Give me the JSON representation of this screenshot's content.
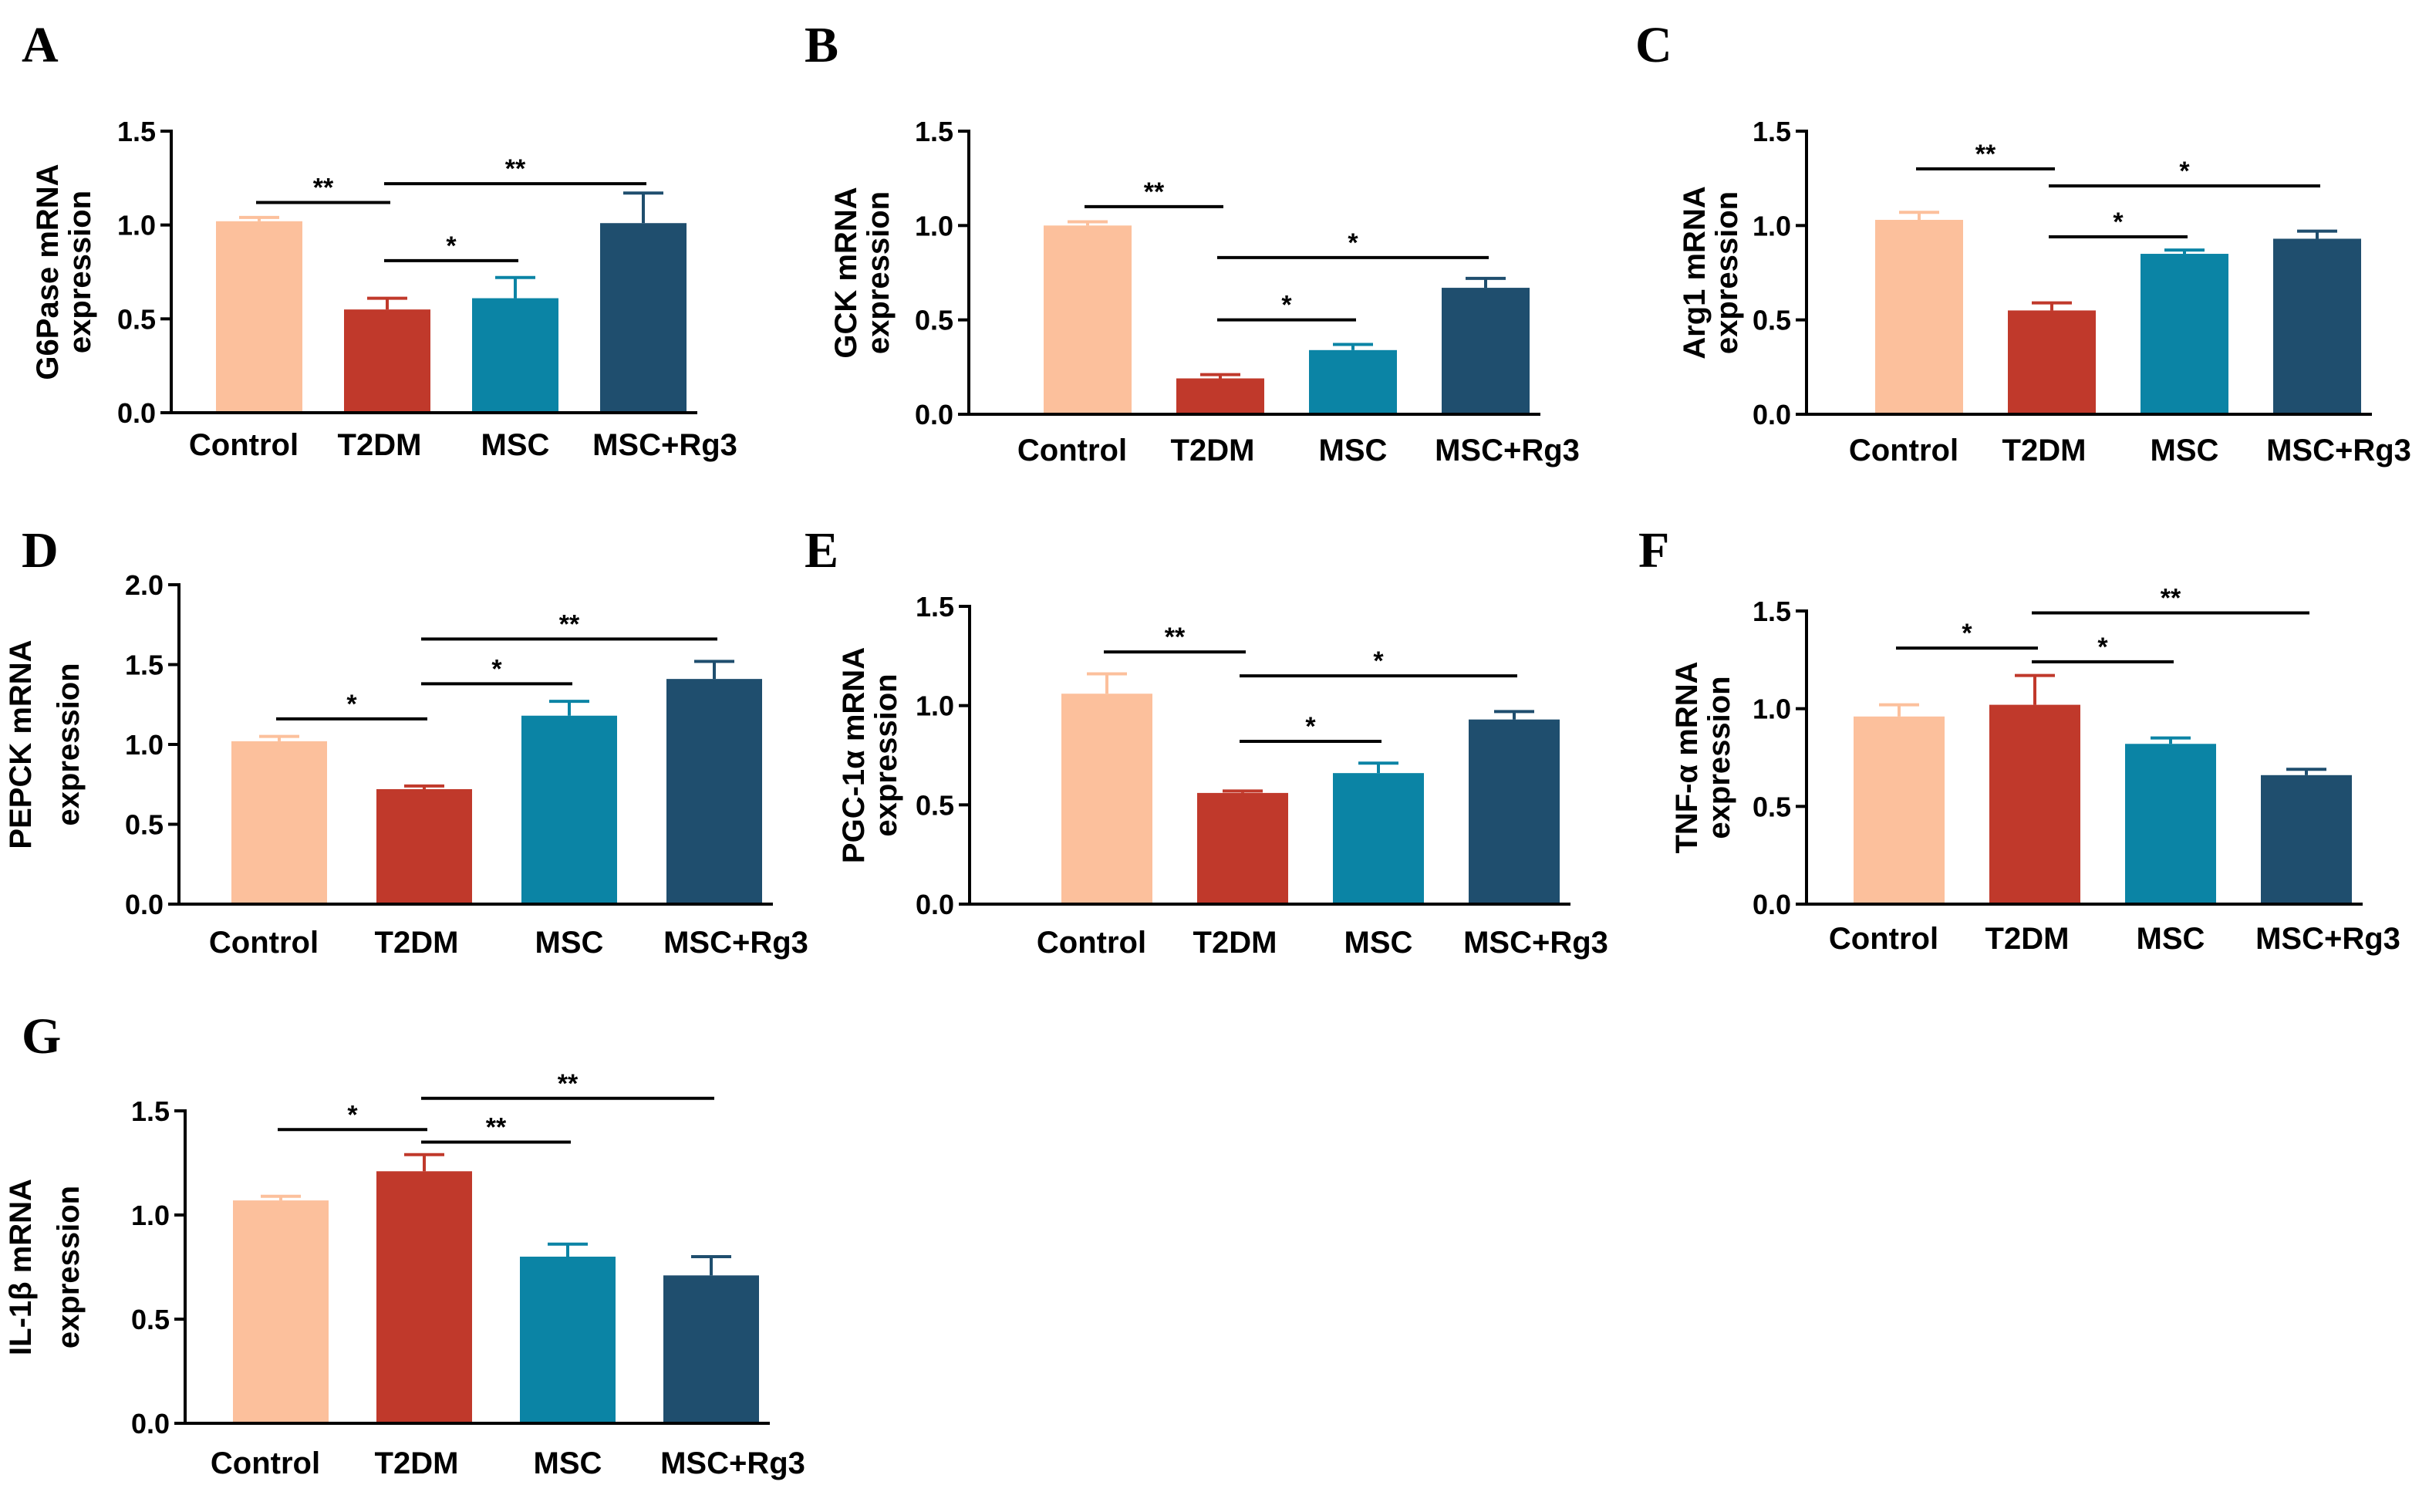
{
  "colors": {
    "Control": "#fcc09c",
    "T2DM": "#c0392b",
    "MSC": "#0b84a5",
    "MSC+Rg3": "#1f4e6e",
    "axis": "#000000"
  },
  "chart_data": [
    {
      "panel": "A",
      "type": "bar",
      "ylabel": [
        "G6Pase mRNA",
        "expression"
      ],
      "categories": [
        "Control",
        "T2DM",
        "MSC",
        "MSC+Rg3"
      ],
      "values": [
        1.02,
        0.55,
        0.61,
        1.01
      ],
      "errors": [
        0.02,
        0.06,
        0.11,
        0.16
      ],
      "ylim": [
        0,
        1.5
      ],
      "yticks": [
        "0.0",
        "0.5",
        "1.0",
        "1.5"
      ],
      "significance": [
        {
          "from": 0,
          "to": 1,
          "label": "**",
          "y": 1.12
        },
        {
          "from": 1,
          "to": 3,
          "label": "**",
          "y": 1.22
        },
        {
          "from": 1,
          "to": 2,
          "label": "*",
          "y": 0.81
        }
      ]
    },
    {
      "panel": "B",
      "type": "bar",
      "ylabel": [
        "GCK mRNA",
        "expression"
      ],
      "categories": [
        "Control",
        "T2DM",
        "MSC",
        "MSC+Rg3"
      ],
      "values": [
        1.0,
        0.19,
        0.34,
        0.67
      ],
      "errors": [
        0.02,
        0.02,
        0.03,
        0.05
      ],
      "ylim": [
        0,
        1.5
      ],
      "yticks": [
        "0.0",
        "0.5",
        "1.0",
        "1.5"
      ],
      "significance": [
        {
          "from": 0,
          "to": 1,
          "label": "**",
          "y": 1.1
        },
        {
          "from": 1,
          "to": 3,
          "label": "*",
          "y": 0.83
        },
        {
          "from": 1,
          "to": 2,
          "label": "*",
          "y": 0.5
        }
      ]
    },
    {
      "panel": "C",
      "type": "bar",
      "ylabel": [
        "Arg1 mRNA",
        "expression"
      ],
      "categories": [
        "Control",
        "T2DM",
        "MSC",
        "MSC+Rg3"
      ],
      "values": [
        1.03,
        0.55,
        0.85,
        0.93
      ],
      "errors": [
        0.04,
        0.04,
        0.02,
        0.04
      ],
      "ylim": [
        0,
        1.5
      ],
      "yticks": [
        "0.0",
        "0.5",
        "1.0",
        "1.5"
      ],
      "significance": [
        {
          "from": 0,
          "to": 1,
          "label": "**",
          "y": 1.3
        },
        {
          "from": 1,
          "to": 3,
          "label": "*",
          "y": 1.21
        },
        {
          "from": 1,
          "to": 2,
          "label": "*",
          "y": 0.94
        }
      ]
    },
    {
      "panel": "D",
      "type": "bar",
      "ylabel": [
        "PEPCK mRNA",
        "expression"
      ],
      "categories": [
        "Control",
        "T2DM",
        "MSC",
        "MSC+Rg3"
      ],
      "values": [
        1.02,
        0.72,
        1.18,
        1.41
      ],
      "errors": [
        0.03,
        0.02,
        0.09,
        0.11
      ],
      "ylim": [
        0,
        2.0
      ],
      "yticks": [
        "0.0",
        "0.5",
        "1.0",
        "1.5",
        "2.0"
      ],
      "significance": [
        {
          "from": 0,
          "to": 1,
          "label": "*",
          "y": 1.16
        },
        {
          "from": 1,
          "to": 2,
          "label": "*",
          "y": 1.38
        },
        {
          "from": 1,
          "to": 3,
          "label": "**",
          "y": 1.66
        }
      ]
    },
    {
      "panel": "E",
      "type": "bar",
      "ylabel": [
        "PGC-1α mRNA",
        "expression"
      ],
      "categories": [
        "Control",
        "T2DM",
        "MSC",
        "MSC+Rg3"
      ],
      "values": [
        1.06,
        0.56,
        0.66,
        0.93
      ],
      "errors": [
        0.1,
        0.01,
        0.05,
        0.04
      ],
      "ylim": [
        0,
        1.5
      ],
      "yticks": [
        "0.0",
        "0.5",
        "1.0",
        "1.5"
      ],
      "significance": [
        {
          "from": 0,
          "to": 1,
          "label": "**",
          "y": 1.27
        },
        {
          "from": 1,
          "to": 3,
          "label": "*",
          "y": 1.15
        },
        {
          "from": 1,
          "to": 2,
          "label": "*",
          "y": 0.82
        }
      ]
    },
    {
      "panel": "F",
      "type": "bar",
      "ylabel": [
        "TNF-α mRNA",
        "expression"
      ],
      "categories": [
        "Control",
        "T2DM",
        "MSC",
        "MSC+Rg3"
      ],
      "values": [
        0.96,
        1.02,
        0.82,
        0.66
      ],
      "errors": [
        0.06,
        0.15,
        0.03,
        0.03
      ],
      "ylim": [
        0,
        1.5
      ],
      "yticks": [
        "0.0",
        "0.5",
        "1.0",
        "1.5"
      ],
      "significance": [
        {
          "from": 0,
          "to": 1,
          "label": "*",
          "y": 1.31
        },
        {
          "from": 1,
          "to": 3,
          "label": "**",
          "y": 1.49
        },
        {
          "from": 1,
          "to": 2,
          "label": "*",
          "y": 1.24
        }
      ]
    },
    {
      "panel": "G",
      "type": "bar",
      "ylabel": [
        "IL-1β mRNA",
        "expression"
      ],
      "categories": [
        "Control",
        "T2DM",
        "MSC",
        "MSC+Rg3"
      ],
      "values": [
        1.07,
        1.21,
        0.8,
        0.71
      ],
      "errors": [
        0.02,
        0.08,
        0.06,
        0.09
      ],
      "ylim": [
        0,
        1.5
      ],
      "yticks": [
        "0.0",
        "0.5",
        "1.0",
        "1.5"
      ],
      "significance": [
        {
          "from": 0,
          "to": 1,
          "label": "*",
          "y": 1.41
        },
        {
          "from": 1,
          "to": 2,
          "label": "**",
          "y": 1.35
        },
        {
          "from": 1,
          "to": 3,
          "label": "**",
          "y": 1.56
        }
      ]
    }
  ]
}
